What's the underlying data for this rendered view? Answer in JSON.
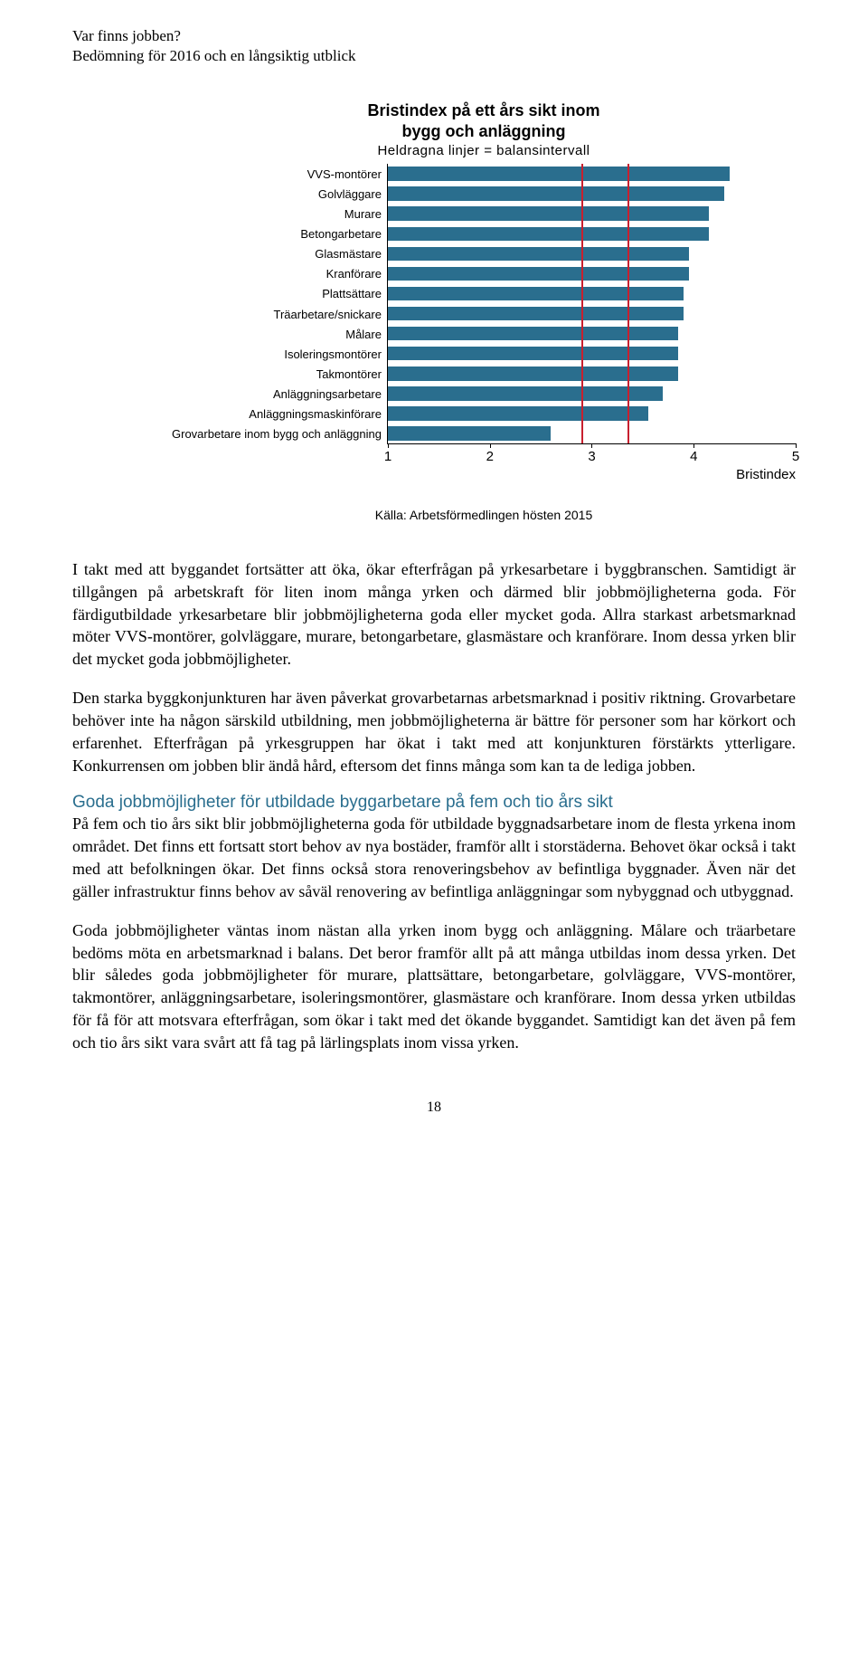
{
  "header": {
    "title": "Var finns jobben?",
    "subtitle": "Bedömning för 2016 och en långsiktig utblick"
  },
  "chart": {
    "title": "Bristindex på ett års sikt inom",
    "title2": "bygg och anläggning",
    "subtitle": "Heldragna linjer = balansintervall",
    "x_min": 1,
    "x_max": 5,
    "x_ticks": [
      1,
      2,
      3,
      4,
      5
    ],
    "x_axis_label": "Bristindex",
    "balance_interval": [
      2.9,
      3.35
    ],
    "bar_color": "#2a6e8e",
    "line_color": "#c8202f",
    "categories": [
      "VVS-montörer",
      "Golvläggare",
      "Murare",
      "Betongarbetare",
      "Glasmästare",
      "Kranförare",
      "Plattsättare",
      "Träarbetare/snickare",
      "Målare",
      "Isoleringsmontörer",
      "Takmontörer",
      "Anläggningsarbetare",
      "Anläggningsmaskinförare",
      "Grovarbetare inom bygg och anläggning"
    ],
    "values": [
      4.35,
      4.3,
      4.15,
      4.15,
      3.95,
      3.95,
      3.9,
      3.9,
      3.85,
      3.85,
      3.85,
      3.7,
      3.55,
      2.6
    ],
    "source": "Källa: Arbetsförmedlingen hösten 2015"
  },
  "paragraphs": {
    "p1": "I takt med att byggandet fortsätter att öka, ökar efterfrågan på yrkesarbetare i byggbranschen. Samtidigt är tillgången på arbetskraft för liten inom många yrken och därmed blir jobbmöjligheterna goda. För färdigutbildade yrkesarbetare blir jobbmöjligheterna goda eller mycket goda. Allra starkast arbetsmarknad möter VVS-montörer, golvläggare, murare, betongarbetare, glasmästare och kranförare. Inom dessa yrken blir det mycket goda jobbmöjligheter.",
    "p2": "Den starka byggkonjunkturen har även påverkat grovarbetarnas arbetsmarknad i positiv riktning. Grovarbetare behöver inte ha någon särskild utbildning, men jobbmöjligheterna är bättre för personer som har körkort och erfarenhet. Efterfrågan på yrkesgruppen har ökat i takt med att konjunkturen förstärkts ytterligare. Konkurrensen om jobben blir ändå hård, eftersom det finns många som kan ta de lediga jobben.",
    "h1": "Goda jobbmöjligheter för utbildade byggarbetare på fem och tio års sikt",
    "p3": "På fem och tio års sikt blir jobbmöjligheterna goda för utbildade byggnadsarbetare inom de flesta yrkena inom området. Det finns ett fortsatt stort behov av nya bostäder, framför allt i storstäderna. Behovet ökar också i takt med att befolkningen ökar. Det finns också stora renoveringsbehov av befintliga byggnader. Även när det gäller infrastruktur finns behov av såväl renovering av befintliga anläggningar som nybyggnad och utbyggnad.",
    "p4": "Goda jobbmöjligheter väntas inom nästan alla yrken inom bygg och anläggning. Målare och träarbetare bedöms möta en arbetsmarknad i balans. Det beror framför allt på att många utbildas inom dessa yrken. Det blir således goda jobbmöjligheter för murare, plattsättare, betongarbetare, golvläggare, VVS-montörer, takmontörer, anläggningsarbetare, isoleringsmontörer, glasmästare och kranförare. Inom dessa yrken utbildas för få för att motsvara efterfrågan, som ökar i takt med det ökande byggandet. Samtidigt kan det även på fem och tio års sikt vara svårt att få tag på lärlingsplats inom vissa yrken."
  },
  "page_number": "18"
}
